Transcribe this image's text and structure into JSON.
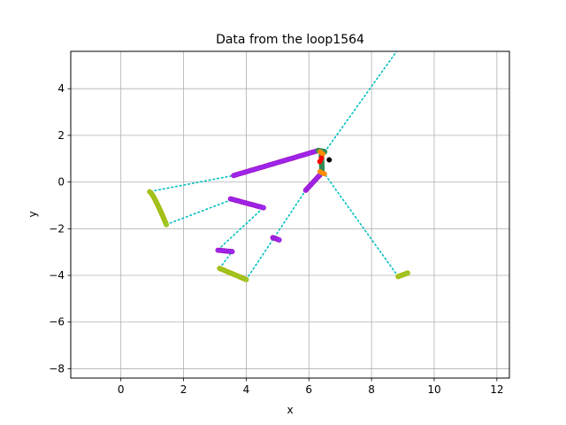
{
  "chart_data": {
    "type": "scatter",
    "title": "Data from the loop1564",
    "xlabel": "x",
    "ylabel": "y",
    "xlim": [
      -1.6,
      12.4
    ],
    "ylim": [
      -8.4,
      5.6
    ],
    "xticks": [
      0,
      2,
      4,
      6,
      8,
      10,
      12
    ],
    "yticks": [
      -8,
      -6,
      -4,
      -2,
      0,
      2,
      4
    ],
    "xtick_labels": [
      "0",
      "2",
      "4",
      "6",
      "8",
      "10",
      "12"
    ],
    "ytick_labels": [
      "−8",
      "−6",
      "−4",
      "−2",
      "0",
      "2",
      "4"
    ],
    "grid": true,
    "colors": {
      "purple_fill": "#9b30ff",
      "purple_edge": "#a010c0",
      "yellowgreen": "#9acd32",
      "yellowgreen_edge": "#a8b400",
      "green": "#2e8b57",
      "orange": "#ff8c00",
      "red": "#ff0000",
      "black": "#000000",
      "cyan_line": "#00bfbf",
      "grid": "#b0b0b0"
    },
    "dotted_lines": [
      {
        "x": [
          0.95,
          3.6
        ],
        "y": [
          -0.4,
          0.28
        ]
      },
      {
        "x": [
          1.45,
          3.55
        ],
        "y": [
          -1.82,
          -0.75
        ]
      },
      {
        "x": [
          3.1,
          4.55
        ],
        "y": [
          -2.9,
          -1.1
        ]
      },
      {
        "x": [
          3.15,
          3.55
        ],
        "y": [
          -3.7,
          -2.98
        ]
      },
      {
        "x": [
          4.0,
          5.9
        ],
        "y": [
          -4.18,
          -0.35
        ]
      },
      {
        "x": [
          8.85,
          6.5
        ],
        "y": [
          -4.05,
          0.35
        ]
      },
      {
        "x": [
          6.35,
          8.8
        ],
        "y": [
          1.0,
          5.6
        ]
      }
    ],
    "series": [
      {
        "style": "purple",
        "segments": [
          {
            "x0": 3.6,
            "y0": 0.28,
            "x1": 6.3,
            "y1": 1.35,
            "n": 40
          },
          {
            "x0": 3.5,
            "y0": -0.72,
            "x1": 4.55,
            "y1": -1.1,
            "n": 18
          },
          {
            "x0": 3.1,
            "y0": -2.92,
            "x1": 3.55,
            "y1": -2.98,
            "n": 8
          },
          {
            "x0": 4.85,
            "y0": -2.38,
            "x1": 5.05,
            "y1": -2.48,
            "n": 5
          },
          {
            "x0": 5.9,
            "y0": -0.35,
            "x1": 6.35,
            "y1": 0.3,
            "n": 12
          }
        ]
      },
      {
        "style": "yellowgreen",
        "segments": [
          {
            "x0": 0.92,
            "y0": -0.42,
            "x1": 1.45,
            "y1": -1.82,
            "n": 22,
            "curve": 0.12
          },
          {
            "x0": 3.15,
            "y0": -3.7,
            "x1": 4.0,
            "y1": -4.18,
            "n": 16
          },
          {
            "x0": 8.85,
            "y0": -4.05,
            "x1": 9.15,
            "y1": -3.9,
            "n": 6
          }
        ]
      },
      {
        "style": "green",
        "segments": [
          {
            "x0": 6.3,
            "y0": 1.35,
            "x1": 6.5,
            "y1": 1.3,
            "n": 5
          },
          {
            "x0": 6.4,
            "y0": 1.15,
            "x1": 6.42,
            "y1": 0.4,
            "n": 10
          }
        ]
      },
      {
        "style": "orange",
        "segments": [
          {
            "x0": 6.35,
            "y0": 1.3,
            "x1": 6.45,
            "y1": 1.2,
            "n": 4
          },
          {
            "x0": 6.35,
            "y0": 0.45,
            "x1": 6.5,
            "y1": 0.35,
            "n": 4
          }
        ]
      },
      {
        "style": "red",
        "segments": [
          {
            "x0": 6.4,
            "y0": 1.02,
            "x1": 6.4,
            "y1": 1.02,
            "n": 1
          },
          {
            "x0": 6.35,
            "y0": 0.88,
            "x1": 6.35,
            "y1": 0.88,
            "n": 1
          }
        ]
      },
      {
        "style": "black",
        "segments": [
          {
            "x0": 6.65,
            "y0": 0.95,
            "x1": 6.65,
            "y1": 0.95,
            "n": 1
          }
        ]
      }
    ]
  }
}
